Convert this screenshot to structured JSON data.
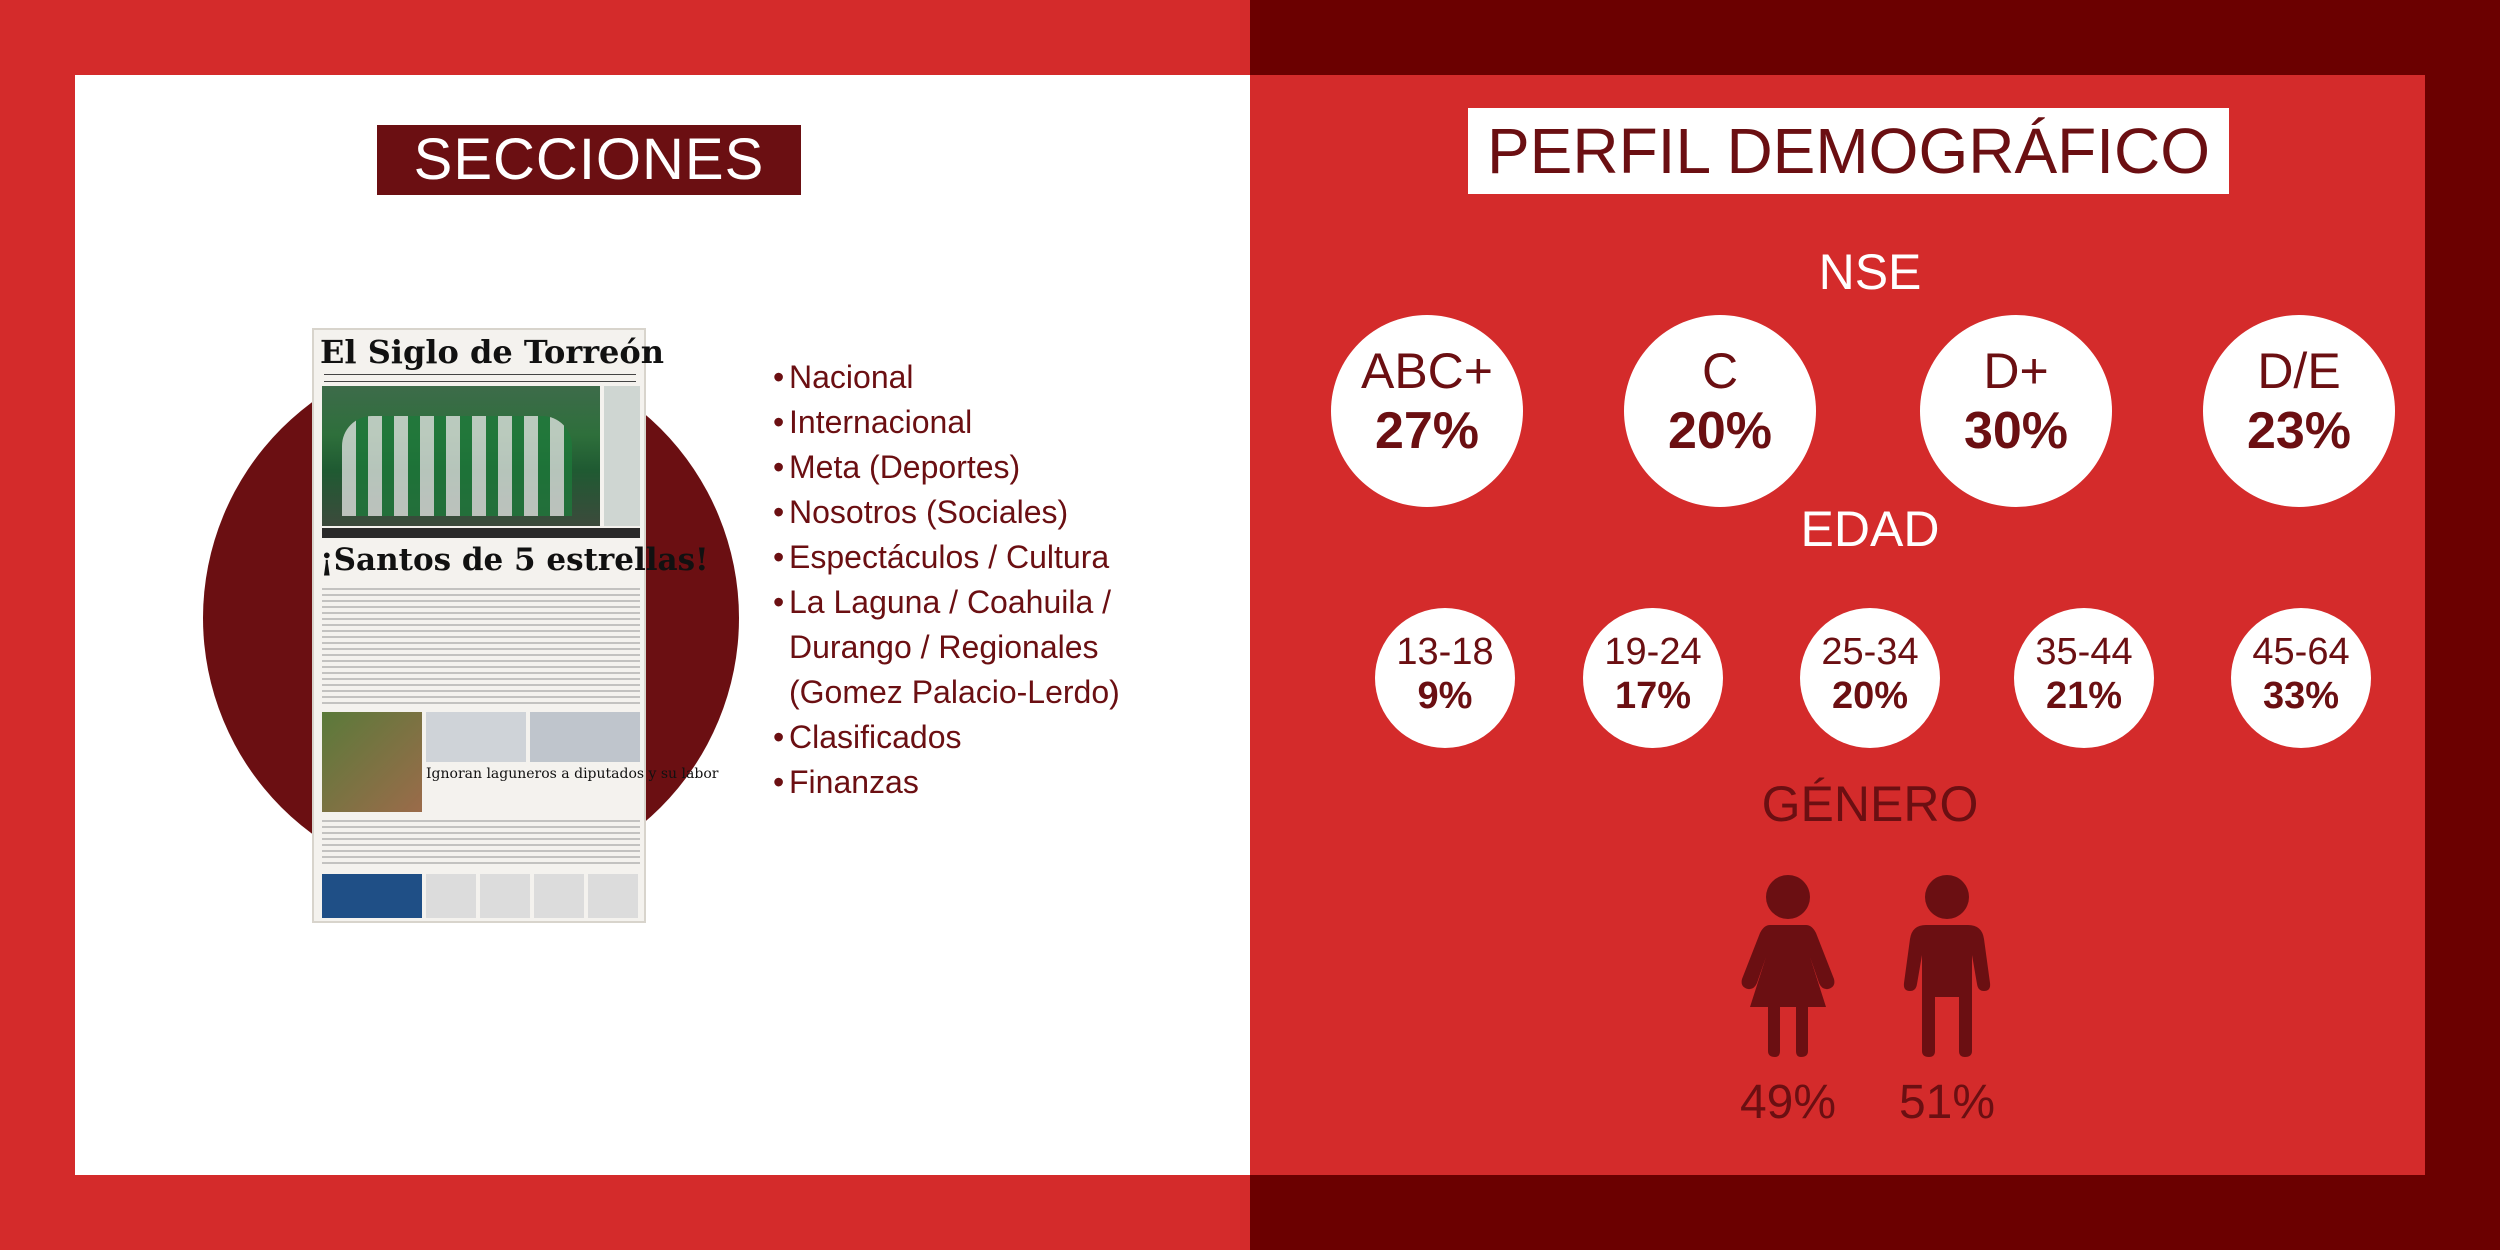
{
  "left": {
    "title": "SECCIONES",
    "newspaper": {
      "masthead": "El Siglo de Torreón",
      "headline": "¡Santos de 5 estrellas!",
      "subheadline": "Ignoran laguneros a diputados y su labor"
    },
    "sections": [
      "Nacional",
      "Internacional",
      "Meta (Deportes)",
      "Nosotros (Sociales)",
      "Espectáculos / Cultura",
      "La Laguna / Coahuila /",
      "Durango / Regionales",
      "(Gomez Palacio-Lerdo)",
      "Clasificados",
      "Finanzas"
    ]
  },
  "right": {
    "title": "PERFIL DEMOGRÁFICO",
    "nse": {
      "label": "NSE",
      "items": [
        {
          "label": "ABC+",
          "value": "27%"
        },
        {
          "label": "C",
          "value": "20%"
        },
        {
          "label": "D+",
          "value": "30%"
        },
        {
          "label": "D/E",
          "value": "23%"
        }
      ]
    },
    "edad": {
      "label": "EDAD",
      "items": [
        {
          "label": "13-18",
          "value": "9%"
        },
        {
          "label": "19-24",
          "value": "17%"
        },
        {
          "label": "25-34",
          "value": "20%"
        },
        {
          "label": "35-44",
          "value": "21%"
        },
        {
          "label": "45-64",
          "value": "33%"
        }
      ]
    },
    "genero": {
      "label": "GÉNERO",
      "female": "49%",
      "male": "51%",
      "icons": [
        "female-icon",
        "male-icon"
      ]
    }
  },
  "colors": {
    "red": "#d42b2b",
    "dark_red": "#6b0f12",
    "white": "#ffffff"
  }
}
